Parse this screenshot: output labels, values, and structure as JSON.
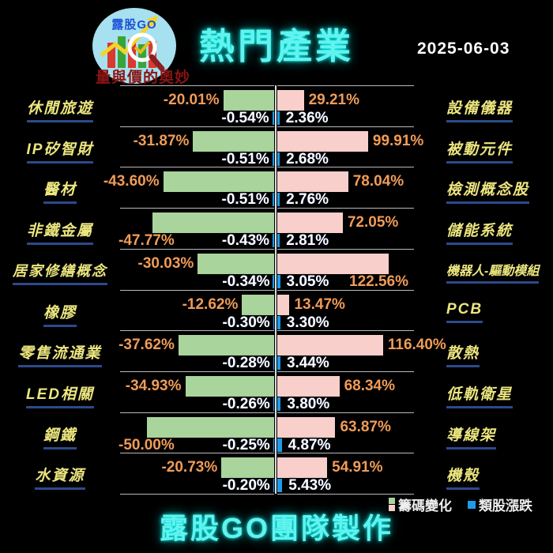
{
  "header": {
    "logo": {
      "brand": "露股GO",
      "tagline": "量與價的奧妙"
    },
    "title": "熱門產業",
    "date": "2025-06-03"
  },
  "footer": {
    "credit": "露股GO團隊製作"
  },
  "legend": {
    "items": [
      {
        "label": "籌碼變化",
        "colors": [
          "#a9d49c",
          "#f8cfcb"
        ]
      },
      {
        "label": "類股漲跌",
        "colors": [
          "#1e9ce9"
        ]
      }
    ]
  },
  "colors": {
    "background": "#000000",
    "declining_chip_bar": "#a9d49c",
    "advancing_chip_bar": "#f8cfcb",
    "sector_change_bar": "#1e9ce9",
    "chip_value_text": "#f09c57",
    "sector_value_text": "#ffffff",
    "category_text": "#ece67f",
    "category_underline": "#2c4a8c",
    "title_glow": "#63f2ee",
    "tagline_red": "#8b1414"
  },
  "chart_data": [
    {
      "type": "bar",
      "panel": "left-declining",
      "orientation": "horizontal",
      "legend_position": "bottom-right",
      "grid": "row-separators",
      "xlim": [
        -60,
        0
      ],
      "categories": [
        "休閒旅遊",
        "IP矽智財",
        "醫材",
        "非鐵金屬",
        "居家修繕概念",
        "橡膠",
        "零售流通業",
        "LED相關",
        "鋼鐵",
        "水資源"
      ],
      "series": [
        {
          "name": "籌碼變化",
          "color": "#a9d49c",
          "values": [
            -20.01,
            -31.87,
            -43.6,
            -47.77,
            -30.03,
            -12.62,
            -37.62,
            -34.93,
            -50.0,
            -20.73
          ]
        },
        {
          "name": "類股漲跌",
          "color": "#1e9ce9",
          "values": [
            -0.54,
            -0.51,
            -0.51,
            -0.43,
            -0.34,
            -0.3,
            -0.28,
            -0.26,
            -0.25,
            -0.2
          ]
        }
      ]
    },
    {
      "type": "bar",
      "panel": "right-advancing",
      "orientation": "horizontal",
      "legend_position": "bottom-right",
      "grid": "row-separators",
      "xlim": [
        0,
        150
      ],
      "categories": [
        "設備儀器",
        "被動元件",
        "檢測概念股",
        "儲能系統",
        "機器人-驅動模組",
        "PCB",
        "散熱",
        "低軌衛星",
        "導線架",
        "機殼"
      ],
      "series": [
        {
          "name": "籌碼變化",
          "color": "#f8cfcb",
          "values": [
            29.21,
            99.91,
            78.04,
            72.05,
            122.56,
            13.47,
            116.4,
            68.34,
            63.87,
            54.91
          ]
        },
        {
          "name": "類股漲跌",
          "color": "#1e9ce9",
          "values": [
            2.36,
            2.68,
            2.76,
            2.81,
            3.05,
            3.3,
            3.44,
            3.8,
            4.87,
            5.43
          ]
        }
      ]
    }
  ]
}
